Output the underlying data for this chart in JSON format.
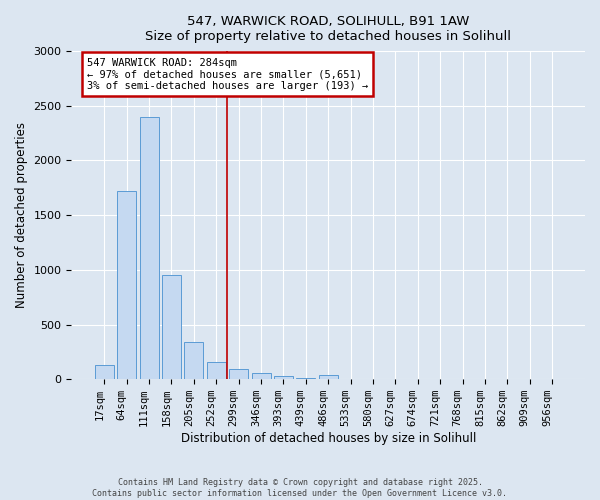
{
  "title_line1": "547, WARWICK ROAD, SOLIHULL, B91 1AW",
  "title_line2": "Size of property relative to detached houses in Solihull",
  "xlabel": "Distribution of detached houses by size in Solihull",
  "ylabel": "Number of detached properties",
  "bar_labels": [
    "17sqm",
    "64sqm",
    "111sqm",
    "158sqm",
    "205sqm",
    "252sqm",
    "299sqm",
    "346sqm",
    "393sqm",
    "439sqm",
    "486sqm",
    "533sqm",
    "580sqm",
    "627sqm",
    "674sqm",
    "721sqm",
    "768sqm",
    "815sqm",
    "862sqm",
    "909sqm",
    "956sqm"
  ],
  "bar_values": [
    130,
    1720,
    2400,
    950,
    340,
    155,
    95,
    55,
    30,
    10,
    35,
    5,
    2,
    0,
    0,
    0,
    0,
    0,
    0,
    0,
    0
  ],
  "bar_color": "#c5d9f1",
  "bar_edgecolor": "#5b9bd5",
  "vline_x_index": 6,
  "vline_color": "#c00000",
  "annotation_text": "547 WARWICK ROAD: 284sqm\n← 97% of detached houses are smaller (5,651)\n3% of semi-detached houses are larger (193) →",
  "annotation_box_color": "#c00000",
  "annotation_bg": "#ffffff",
  "ylim": [
    0,
    3000
  ],
  "yticks": [
    0,
    500,
    1000,
    1500,
    2000,
    2500,
    3000
  ],
  "footer_line1": "Contains HM Land Registry data © Crown copyright and database right 2025.",
  "footer_line2": "Contains public sector information licensed under the Open Government Licence v3.0.",
  "bg_color": "#dce6f1",
  "plot_bg": "#dce6f1",
  "grid_color": "#ffffff"
}
